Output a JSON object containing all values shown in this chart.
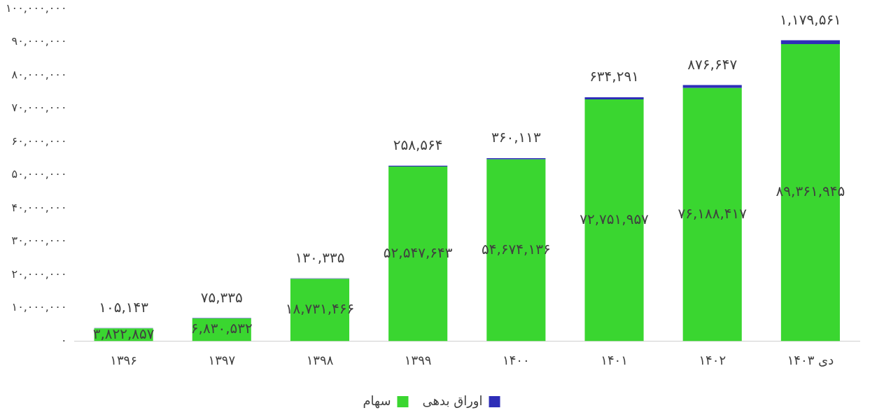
{
  "chart_data": {
    "type": "bar",
    "stacked": true,
    "grid": false,
    "legend": "bottom",
    "categories": [
      "۱۳۹۶",
      "۱۳۹۷",
      "۱۳۹۸",
      "۱۳۹۹",
      "۱۴۰۰",
      "۱۴۰۱",
      "۱۴۰۲",
      "دی ۱۴۰۳"
    ],
    "ylim": [
      0,
      100000000
    ],
    "yticks": [
      {
        "value": 0,
        "label": "۰"
      },
      {
        "value": 10000000,
        "label": "۱۰,۰۰۰,۰۰۰"
      },
      {
        "value": 20000000,
        "label": "۲۰,۰۰۰,۰۰۰"
      },
      {
        "value": 30000000,
        "label": "۳۰,۰۰۰,۰۰۰"
      },
      {
        "value": 40000000,
        "label": "۴۰,۰۰۰,۰۰۰"
      },
      {
        "value": 50000000,
        "label": "۵۰,۰۰۰,۰۰۰"
      },
      {
        "value": 60000000,
        "label": "۶۰,۰۰۰,۰۰۰"
      },
      {
        "value": 70000000,
        "label": "۷۰,۰۰۰,۰۰۰"
      },
      {
        "value": 80000000,
        "label": "۸۰,۰۰۰,۰۰۰"
      },
      {
        "value": 90000000,
        "label": "۹۰,۰۰۰,۰۰۰"
      },
      {
        "value": 100000000,
        "label": "۱۰۰,۰۰۰,۰۰۰"
      }
    ],
    "series": [
      {
        "name": "سهام",
        "color": "#3ad630",
        "values": [
          3822857,
          6830532,
          18731466,
          52547643,
          54674136,
          72751957,
          76188417,
          89361945
        ],
        "value_labels": [
          "۳,۸۲۲,۸۵۷",
          "۶,۸۳۰,۵۳۲",
          "۱۸,۷۳۱,۴۶۶",
          "۵۲,۵۴۷,۶۴۳",
          "۵۴,۶۷۴,۱۳۶",
          "۷۲,۷۵۱,۹۵۷",
          "۷۶,۱۸۸,۴۱۷",
          "۸۹,۳۶۱,۹۴۵"
        ]
      },
      {
        "name": "اوراق بدهی",
        "color": "#2e2eb8",
        "values": [
          105143,
          75335,
          130335,
          258564,
          360113,
          634291,
          876647,
          1179561
        ],
        "value_labels": [
          "۱۰۵,۱۴۳",
          "۷۵,۳۳۵",
          "۱۳۰,۳۳۵",
          "۲۵۸,۵۶۴",
          "۳۶۰,۱۱۳",
          "۶۳۴,۲۹۱",
          "۸۷۶,۶۴۷",
          "۱,۱۷۹,۵۶۱"
        ]
      }
    ]
  }
}
